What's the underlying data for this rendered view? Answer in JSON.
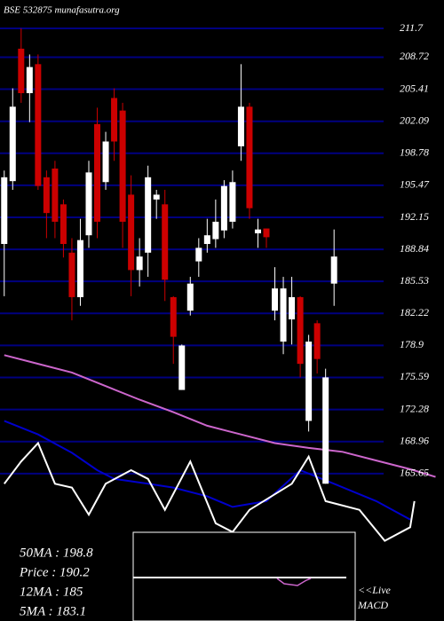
{
  "chart_data": {
    "type": "candlestick",
    "title": "BSE 532875 munafasutra.org",
    "ylim": [
      158.2,
      211.7
    ],
    "xlim": [
      -0.5,
      52
    ],
    "yticks": [
      211.7,
      208.72,
      205.41,
      202.09,
      198.78,
      195.47,
      192.15,
      188.84,
      185.53,
      182.22,
      178.9,
      175.59,
      172.28,
      168.96,
      165.65
    ],
    "grid": true,
    "grid_color": "#000080",
    "up_color": "#ffffff",
    "down_color": "#cc0000",
    "open": [
      189.4,
      195.9,
      209.6,
      205.0,
      208.0,
      196.3,
      197.2,
      193.5,
      188.5,
      183.9,
      190.3,
      201.8,
      195.8,
      204.5,
      203.2,
      194.5,
      186.7,
      188.5,
      194.0,
      193.5,
      183.9,
      174.3,
      182.5,
      187.6,
      189.4,
      189.9,
      190.8,
      191.7,
      199.5,
      203.6,
      190.5,
      191.0,
      182.5,
      179.3,
      181.6,
      183.9,
      171.1,
      181.2,
      164.6,
      185.3
    ],
    "high": [
      197.0,
      205.5,
      211.7,
      209.0,
      209.0,
      197.0,
      198.0,
      194.0,
      190.0,
      192.0,
      198.0,
      203.5,
      201.0,
      205.5,
      204.0,
      196.5,
      190.0,
      197.5,
      195.0,
      195.0,
      184.0,
      179.0,
      186.0,
      190.0,
      192.0,
      194.0,
      196.0,
      197.0,
      208.0,
      204.0,
      192.0,
      191.0,
      187.0,
      186.0,
      186.0,
      184.0,
      180.0,
      181.5,
      176.5,
      190.9
    ],
    "low": [
      184.0,
      195.0,
      204.0,
      202.0,
      195.0,
      190.0,
      190.0,
      188.0,
      181.5,
      183.0,
      189.0,
      190.0,
      195.0,
      198.0,
      189.0,
      184.0,
      185.0,
      186.0,
      192.0,
      183.5,
      177.0,
      174.3,
      182.0,
      186.0,
      188.5,
      189.0,
      190.0,
      191.0,
      198.0,
      192.0,
      189.0,
      189.0,
      181.5,
      178.0,
      179.0,
      175.6,
      170.0,
      176.0,
      164.6,
      183.0
    ],
    "close": [
      196.3,
      203.6,
      205.0,
      207.7,
      195.4,
      192.6,
      191.7,
      189.4,
      183.9,
      189.8,
      196.8,
      191.7,
      200.0,
      200.0,
      191.7,
      186.7,
      188.1,
      196.3,
      194.5,
      185.7,
      179.8,
      178.9,
      185.3,
      189.0,
      190.3,
      191.7,
      195.4,
      195.8,
      203.6,
      193.1,
      190.9,
      190.1,
      184.8,
      184.8,
      183.9,
      177.0,
      179.3,
      177.5,
      175.6,
      188.1
    ],
    "series": [
      {
        "color": "#cc66cc",
        "x": [
          0,
          4,
          8,
          12,
          16,
          20,
          24,
          28,
          32,
          36,
          40,
          44,
          48,
          51
        ],
        "values": [
          177.9,
          177.0,
          176.1,
          174.7,
          173.3,
          172.0,
          170.6,
          169.7,
          168.8,
          168.3,
          167.9,
          167.0,
          166.1,
          165.3
        ]
      },
      {
        "color": "#0000cc",
        "x": [
          0,
          4,
          8,
          11,
          13,
          17,
          20,
          24,
          27,
          31,
          35,
          39,
          44,
          48
        ],
        "values": [
          171.1,
          169.7,
          167.8,
          166.0,
          165.1,
          164.6,
          164.2,
          163.3,
          162.2,
          162.8,
          166.0,
          164.6,
          162.8,
          160.9
        ]
      },
      {
        "color": "#ffffff",
        "x": [
          0,
          2,
          4,
          6,
          8,
          10,
          12,
          15,
          17,
          19,
          22,
          25,
          27,
          29,
          34,
          36,
          38,
          42,
          45,
          48,
          48.5
        ],
        "values": [
          164.6,
          166.9,
          168.8,
          164.6,
          164.2,
          161.4,
          164.6,
          166.0,
          165.1,
          161.9,
          166.9,
          160.5,
          159.6,
          161.9,
          164.6,
          167.4,
          162.8,
          161.9,
          158.7,
          160.1,
          162.8
        ]
      }
    ],
    "annotations": [
      "50MA : 198.8",
      "Price  : 190.2",
      "12MA : 185",
      "5MA : 183.1"
    ],
    "macd_label": [
      "<<Live",
      "MACD"
    ]
  }
}
